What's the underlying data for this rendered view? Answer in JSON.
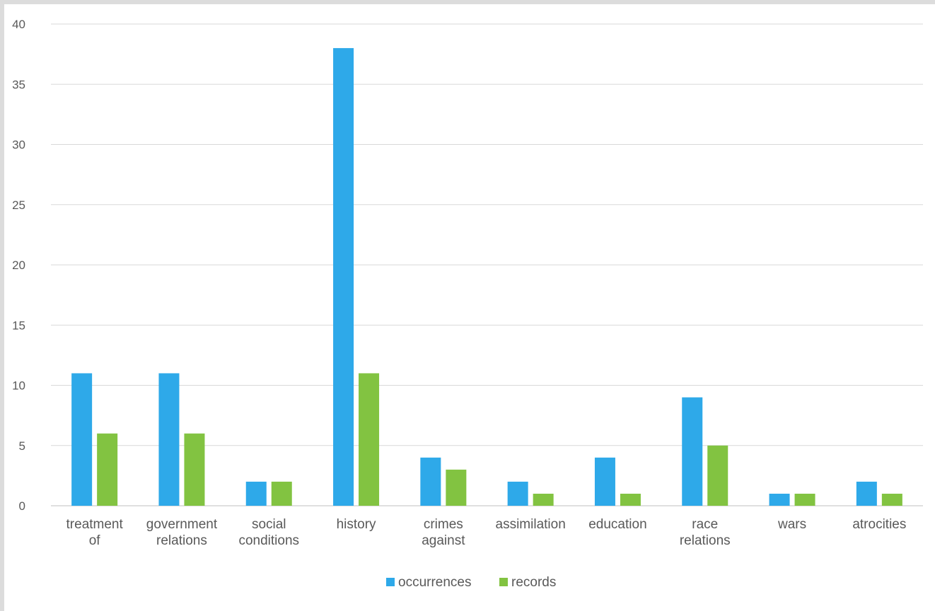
{
  "chart_data": {
    "type": "bar",
    "categories": [
      [
        "treatment",
        "of"
      ],
      [
        "government",
        "relations"
      ],
      [
        "social",
        "conditions"
      ],
      [
        "history"
      ],
      [
        "crimes",
        "against"
      ],
      [
        "assimilation"
      ],
      [
        "education"
      ],
      [
        "race",
        "relations"
      ],
      [
        "wars"
      ],
      [
        "atrocities"
      ]
    ],
    "series": [
      {
        "name": "occurrences",
        "color": "#2EA9E9",
        "values": [
          11,
          11,
          2,
          38,
          4,
          2,
          4,
          9,
          1,
          2
        ]
      },
      {
        "name": "records",
        "color": "#82C341",
        "values": [
          6,
          6,
          2,
          11,
          3,
          1,
          1,
          5,
          1,
          1
        ]
      }
    ],
    "ylim": [
      0,
      40
    ],
    "yticks": [
      0,
      5,
      10,
      15,
      20,
      25,
      30,
      35,
      40
    ],
    "grid": true,
    "legend": "bottom-center",
    "title": "",
    "xlabel": "",
    "ylabel": ""
  }
}
